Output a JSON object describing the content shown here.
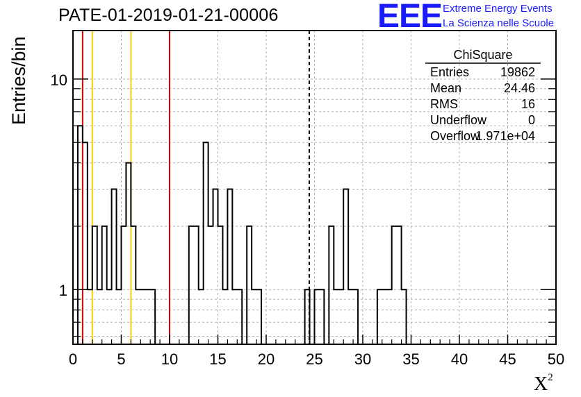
{
  "header": {
    "title": "PATE-01-2019-01-21-00006",
    "logo_text": "EEE",
    "logo_line1": "Extreme Energy Events",
    "logo_line2": "La Scienza nelle Scuole"
  },
  "stats_box": {
    "name": "ChiSquare",
    "rows": [
      {
        "label": "Entries",
        "value": "19862"
      },
      {
        "label": "Mean",
        "value": "24.46"
      },
      {
        "label": "RMS",
        "value": "16"
      },
      {
        "label": "Underflow",
        "value": "0"
      },
      {
        "label": "Overflow",
        "value": "1.971e+04"
      }
    ]
  },
  "chart_data": {
    "type": "bar",
    "style": "step-histogram",
    "title": "PATE-01-2019-01-21-00006",
    "xlabel": "X",
    "xlabel_superscript": "2",
    "ylabel": "Entries/bin",
    "xlim": [
      0,
      50
    ],
    "ylim": [
      0.55,
      17
    ],
    "yscale": "log",
    "grid": true,
    "x_ticks": [
      0,
      5,
      10,
      15,
      20,
      25,
      30,
      35,
      40,
      45,
      50
    ],
    "x_tick_labels": [
      "0",
      "5",
      "10",
      "15",
      "20",
      "25",
      "30",
      "35",
      "40",
      "45",
      "50"
    ],
    "y_ticks": [
      1,
      10
    ],
    "y_tick_labels": [
      "1",
      "10"
    ],
    "bin_width": 0.5,
    "values": [
      0.5,
      6,
      5,
      1,
      2,
      1,
      2,
      1,
      3,
      1,
      2,
      4,
      2,
      1,
      1,
      1,
      1,
      0,
      0,
      0,
      0,
      0,
      0,
      0,
      2,
      2,
      1,
      5,
      2,
      3,
      2,
      1,
      3,
      1,
      1,
      0,
      2,
      1,
      1,
      0,
      0,
      0,
      0,
      0,
      0,
      0,
      0,
      0,
      1,
      0,
      1,
      1,
      0,
      2,
      1,
      1,
      3,
      1,
      1,
      0,
      0,
      0,
      0,
      1,
      1,
      1,
      2,
      2,
      1,
      0,
      0,
      0,
      0,
      0,
      0,
      0,
      0,
      0,
      0,
      0,
      0,
      0,
      0,
      0,
      0,
      0,
      0,
      0,
      0,
      0,
      0,
      0,
      0,
      0,
      0,
      0,
      0,
      0,
      0,
      0
    ],
    "vlines": [
      {
        "x": 1,
        "color": "#dd0000",
        "style": "solid"
      },
      {
        "x": 2,
        "color": "#ffcc00",
        "style": "solid"
      },
      {
        "x": 6,
        "color": "#ffcc00",
        "style": "solid"
      },
      {
        "x": 10,
        "color": "#dd0000",
        "style": "solid"
      },
      {
        "x": 24.46,
        "color": "#000000",
        "style": "dashed"
      }
    ]
  }
}
